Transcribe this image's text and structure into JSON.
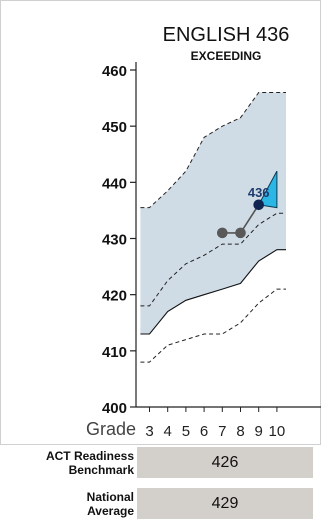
{
  "chart_data": {
    "type": "line",
    "title": "ENGLISH 436",
    "subtitle": "EXCEEDING",
    "xlabel": "Grade",
    "x_ticks": [
      3,
      4,
      5,
      6,
      7,
      8,
      9,
      10
    ],
    "ylim": [
      400,
      460
    ],
    "y_ticks": [
      400,
      410,
      420,
      430,
      440,
      450,
      460
    ],
    "exceeding_band": {
      "x": [
        2.5,
        3,
        4,
        5,
        6,
        7,
        8,
        9,
        10,
        10.5
      ],
      "upper": [
        435.5,
        435.5,
        438.5,
        442,
        448,
        450,
        451.5,
        456,
        456,
        456
      ],
      "lower": [
        413,
        413,
        417,
        419,
        420,
        421,
        422,
        426,
        428,
        428
      ]
    },
    "upper_band_dashed": {
      "x": [
        2.5,
        3,
        4,
        5,
        6,
        7,
        8,
        9,
        10,
        10.5
      ],
      "upper": [
        435.5,
        435.5,
        438.5,
        442,
        448,
        450,
        451.5,
        456,
        456,
        456
      ],
      "lower": [
        418,
        418,
        422.5,
        425.5,
        427,
        429,
        429,
        432.5,
        434.5,
        434.5
      ]
    },
    "lower_band_dashed": {
      "x": [
        2.5,
        3,
        4,
        5,
        6,
        7,
        8,
        9,
        10,
        10.5
      ],
      "lower": [
        408,
        408,
        411,
        412,
        413,
        413,
        415,
        418.5,
        421,
        421
      ]
    },
    "student_scores": {
      "x": [
        7,
        8,
        9
      ],
      "y": [
        431,
        431,
        436
      ],
      "labels": [
        "",
        "",
        "436"
      ]
    },
    "projection": {
      "from": [
        9,
        436
      ],
      "upper": [
        10,
        442
      ],
      "lower": [
        10,
        435.5
      ]
    },
    "colors": {
      "band_fill": "#cfdbe5",
      "point_past": "#595959",
      "point_current": "#0f2550",
      "projection_fill": "#2cb6e6",
      "label": "#1f3c6e",
      "bench_box": "#d3d0cc"
    }
  },
  "benchmarks": [
    {
      "label_line1": "ACT Readiness",
      "label_line2": "Benchmark",
      "value": "426"
    },
    {
      "label_line1": "National",
      "label_line2": "Average",
      "value": "429"
    }
  ]
}
